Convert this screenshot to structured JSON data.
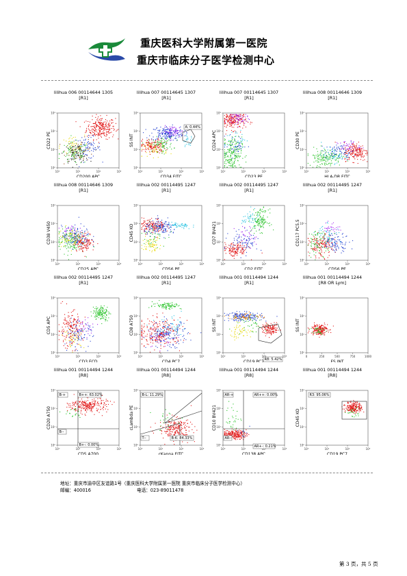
{
  "header": {
    "hospital": "重庆医科大学附属第一医院",
    "center": "重庆市临床分子医学检测中心"
  },
  "footer": {
    "address": "地址：重庆市渝中区友谊路1号（重庆医科大学附属第一医院 重庆市临床分子医学检测中心）",
    "postcode": "邮编：400016",
    "phone": "电话：023-89011478",
    "page": "第 3 页，共 5 页"
  },
  "chart_data": [
    {
      "type": "scatter",
      "title": "lilihua 006 00114644 1305",
      "gate": "[R1]",
      "xlabel": "CD200 APC",
      "ylabel": "CD22 PE",
      "x_scale": "log",
      "y_scale": "log",
      "xticks": [
        "10⁰",
        "10¹",
        "10²",
        "10³"
      ],
      "yticks": [
        "10⁰",
        "10¹",
        "10²",
        "10³"
      ],
      "populations": [
        {
          "color": "#e01010",
          "cx": 2.1,
          "cy": 2.2,
          "sx": 0.35,
          "sy": 0.3,
          "n": 260
        },
        {
          "color": "#1e3cd0",
          "cx": 1.4,
          "cy": 1.1,
          "sx": 0.35,
          "sy": 0.3,
          "n": 90
        },
        {
          "color": "#22c022",
          "cx": 0.8,
          "cy": 0.8,
          "sx": 0.35,
          "sy": 0.3,
          "n": 90
        },
        {
          "color": "#8b4513",
          "cx": 1.1,
          "cy": 1.0,
          "sx": 0.35,
          "sy": 0.3,
          "n": 60
        },
        {
          "color": "#111111",
          "cx": 0.9,
          "cy": 0.8,
          "sx": 0.3,
          "sy": 0.25,
          "n": 60
        },
        {
          "color": "#e8d800",
          "cx": 0.7,
          "cy": 1.2,
          "sx": 0.3,
          "sy": 0.3,
          "n": 40
        }
      ],
      "annotations": []
    },
    {
      "type": "scatter",
      "title": "lilihua 007 00114645 1307",
      "gate": "[R1]",
      "xlabel": "CD34 FITC",
      "ylabel": "SS INT",
      "x_scale": "log",
      "y_scale": "log",
      "xticks": [
        "10⁰",
        "10¹",
        "10²",
        "10³"
      ],
      "yticks": [
        "10⁰",
        "10¹",
        "10²",
        "10³"
      ],
      "populations": [
        {
          "color": "#1e3cd0",
          "cx": 1.3,
          "cy": 1.9,
          "sx": 0.4,
          "sy": 0.2,
          "n": 180
        },
        {
          "color": "#e01010",
          "cx": 0.6,
          "cy": 1.2,
          "sx": 0.3,
          "sy": 0.2,
          "n": 140
        },
        {
          "color": "#22c022",
          "cx": 1.0,
          "cy": 1.3,
          "sx": 0.3,
          "sy": 0.2,
          "n": 80
        },
        {
          "color": "#a020f0",
          "cx": 1.6,
          "cy": 2.0,
          "sx": 0.25,
          "sy": 0.15,
          "n": 60
        },
        {
          "color": "#e8d800",
          "cx": 0.7,
          "cy": 1.0,
          "sx": 0.3,
          "sy": 0.2,
          "n": 40
        },
        {
          "color": "#20c0e0",
          "cx": 2.3,
          "cy": 1.5,
          "sx": 0.15,
          "sy": 0.15,
          "n": 25
        }
      ],
      "annotations": [
        {
          "text": "A: 0.44%"
        }
      ]
    },
    {
      "type": "scatter",
      "title": "lilihua 007 00114645 1307",
      "gate": "[R1]",
      "xlabel": "CD23 PE",
      "ylabel": "CD24 APC",
      "x_scale": "log",
      "y_scale": "log",
      "xticks": [
        "10⁰",
        "10¹",
        "10²",
        "10³"
      ],
      "yticks": [
        "10⁰",
        "10¹",
        "10²",
        "10³"
      ],
      "populations": [
        {
          "color": "#e01010",
          "cx": 0.5,
          "cy": 2.6,
          "sx": 0.3,
          "sy": 0.25,
          "n": 200
        },
        {
          "color": "#a020f0",
          "cx": 0.7,
          "cy": 2.7,
          "sx": 0.25,
          "sy": 0.2,
          "n": 60
        },
        {
          "color": "#22c022",
          "cx": 0.4,
          "cy": 0.8,
          "sx": 0.25,
          "sy": 0.45,
          "n": 200
        },
        {
          "color": "#1e3cd0",
          "cx": 0.6,
          "cy": 1.2,
          "sx": 0.3,
          "sy": 0.3,
          "n": 40
        },
        {
          "color": "#20c0e0",
          "cx": 0.6,
          "cy": 1.6,
          "sx": 0.25,
          "sy": 0.25,
          "n": 25
        }
      ],
      "annotations": []
    },
    {
      "type": "scatter",
      "title": "lilihua 008 00114646 1309",
      "gate": "[R1]",
      "xlabel": "HLA-DR FITC",
      "ylabel": "CD30 PE",
      "x_scale": "log",
      "y_scale": "log",
      "xticks": [
        "10⁰",
        "10¹",
        "10²",
        "10³"
      ],
      "yticks": [
        "10⁰",
        "10¹",
        "10²",
        "10³"
      ],
      "populations": [
        {
          "color": "#e01010",
          "cx": 2.4,
          "cy": 0.9,
          "sx": 0.3,
          "sy": 0.25,
          "n": 180
        },
        {
          "color": "#22c022",
          "cx": 0.9,
          "cy": 0.6,
          "sx": 0.4,
          "sy": 0.25,
          "n": 150
        },
        {
          "color": "#1e3cd0",
          "cx": 1.6,
          "cy": 0.9,
          "sx": 0.35,
          "sy": 0.2,
          "n": 70
        },
        {
          "color": "#a020f0",
          "cx": 2.0,
          "cy": 1.2,
          "sx": 0.3,
          "sy": 0.15,
          "n": 40
        },
        {
          "color": "#20c0e0",
          "cx": 1.3,
          "cy": 0.7,
          "sx": 0.3,
          "sy": 0.2,
          "n": 40
        }
      ],
      "annotations": []
    },
    {
      "type": "scatter",
      "title": "lilihua 008 00114646 1309",
      "gate": "[R1]",
      "xlabel": "CD25 APC",
      "ylabel": "CD38 V450",
      "x_scale": "log",
      "y_scale": "log",
      "xticks": [
        "10⁰",
        "10¹",
        "10²",
        "10³"
      ],
      "yticks": [
        "10⁰",
        "10¹",
        "10²",
        "10³"
      ],
      "populations": [
        {
          "color": "#22c022",
          "cx": 0.6,
          "cy": 1.1,
          "sx": 0.35,
          "sy": 0.35,
          "n": 150
        },
        {
          "color": "#1e3cd0",
          "cx": 0.9,
          "cy": 1.3,
          "sx": 0.35,
          "sy": 0.3,
          "n": 120
        },
        {
          "color": "#e01010",
          "cx": 1.3,
          "cy": 1.0,
          "sx": 0.25,
          "sy": 0.25,
          "n": 120
        },
        {
          "color": "#e8d800",
          "cx": 0.5,
          "cy": 1.3,
          "sx": 0.25,
          "sy": 0.25,
          "n": 50
        },
        {
          "color": "#a020f0",
          "cx": 0.6,
          "cy": 1.6,
          "sx": 0.2,
          "sy": 0.2,
          "n": 30
        }
      ],
      "annotations": []
    },
    {
      "type": "scatter",
      "title": "lilihua 002 00114495 1247",
      "gate": "[R1]",
      "xlabel": "CD56 PE",
      "ylabel": "CD45 KO",
      "x_scale": "log",
      "y_scale": "log",
      "xticks": [
        "10⁰",
        "10¹",
        "10²",
        "10³"
      ],
      "yticks": [
        "10⁰",
        "10¹",
        "10²",
        "10³"
      ],
      "populations": [
        {
          "color": "#e01010",
          "cx": 0.6,
          "cy": 1.9,
          "sx": 0.3,
          "sy": 0.2,
          "n": 150
        },
        {
          "color": "#1e3cd0",
          "cx": 1.0,
          "cy": 1.8,
          "sx": 0.4,
          "sy": 0.2,
          "n": 140
        },
        {
          "color": "#20c0e0",
          "cx": 1.9,
          "cy": 1.9,
          "sx": 0.3,
          "sy": 0.1,
          "n": 50
        },
        {
          "color": "#e8d800",
          "cx": 0.5,
          "cy": 0.9,
          "sx": 0.25,
          "sy": 0.2,
          "n": 60
        },
        {
          "color": "#22c022",
          "cx": 0.6,
          "cy": 1.4,
          "sx": 0.3,
          "sy": 0.3,
          "n": 40
        }
      ],
      "annotations": []
    },
    {
      "type": "scatter",
      "title": "lilihua 002 00114495 1247",
      "gate": "[R1]",
      "xlabel": "CD2 FITC",
      "ylabel": "CD7 BV421",
      "x_scale": "log",
      "y_scale": "log",
      "xticks": [
        "10⁰",
        "10¹",
        "10²",
        "10³"
      ],
      "yticks": [
        "10⁰",
        "10¹",
        "10²",
        "10³"
      ],
      "populations": [
        {
          "color": "#22c022",
          "cx": 1.8,
          "cy": 2.2,
          "sx": 0.2,
          "sy": 0.3,
          "n": 130
        },
        {
          "color": "#e01010",
          "cx": 0.6,
          "cy": 0.6,
          "sx": 0.3,
          "sy": 0.2,
          "n": 140
        },
        {
          "color": "#1e3cd0",
          "cx": 1.0,
          "cy": 1.0,
          "sx": 0.35,
          "sy": 0.3,
          "n": 80
        },
        {
          "color": "#20c0e0",
          "cx": 1.3,
          "cy": 2.3,
          "sx": 0.2,
          "sy": 0.25,
          "n": 40
        },
        {
          "color": "#a020f0",
          "cx": 1.2,
          "cy": 1.4,
          "sx": 0.3,
          "sy": 0.3,
          "n": 30
        }
      ],
      "annotations": []
    },
    {
      "type": "scatter",
      "title": "lilihua 002 00114495 1247",
      "gate": "[R1]",
      "xlabel": "CD56 PE",
      "ylabel": "CD117 PC5.5",
      "x_scale": "log",
      "y_scale": "log",
      "xticks": [
        "10⁰",
        "10¹",
        "10²",
        "10³"
      ],
      "yticks": [
        "10⁰",
        "10¹",
        "10²",
        "10³"
      ],
      "populations": [
        {
          "color": "#e01010",
          "cx": 0.7,
          "cy": 0.8,
          "sx": 0.3,
          "sy": 0.3,
          "n": 150
        },
        {
          "color": "#1e3cd0",
          "cx": 1.4,
          "cy": 1.0,
          "sx": 0.35,
          "sy": 0.25,
          "n": 100
        },
        {
          "color": "#22c022",
          "cx": 0.6,
          "cy": 1.0,
          "sx": 0.3,
          "sy": 0.35,
          "n": 80
        },
        {
          "color": "#20c0e0",
          "cx": 1.0,
          "cy": 1.5,
          "sx": 0.3,
          "sy": 0.3,
          "n": 40
        },
        {
          "color": "#a020f0",
          "cx": 1.2,
          "cy": 1.8,
          "sx": 0.2,
          "sy": 0.15,
          "n": 30
        }
      ],
      "annotations": []
    },
    {
      "type": "scatter",
      "title": "lilihua 002 00114495 1247",
      "gate": "[R1]",
      "xlabel": "CD3 ECD",
      "ylabel": "CD5 APC",
      "x_scale": "log",
      "y_scale": "log",
      "xticks": [
        "10⁰",
        "10¹",
        "10²",
        "10³"
      ],
      "yticks": [
        "10⁰",
        "10¹",
        "10²",
        "10³"
      ],
      "populations": [
        {
          "color": "#22c022",
          "cx": 2.1,
          "cy": 2.2,
          "sx": 0.2,
          "sy": 0.2,
          "n": 130
        },
        {
          "color": "#e01010",
          "cx": 0.6,
          "cy": 1.3,
          "sx": 0.3,
          "sy": 0.5,
          "n": 170
        },
        {
          "color": "#1e3cd0",
          "cx": 1.0,
          "cy": 1.0,
          "sx": 0.35,
          "sy": 0.35,
          "n": 90
        },
        {
          "color": "#e8d800",
          "cx": 0.8,
          "cy": 0.8,
          "sx": 0.25,
          "sy": 0.25,
          "n": 40
        },
        {
          "color": "#a020f0",
          "cx": 1.3,
          "cy": 1.5,
          "sx": 0.3,
          "sy": 0.25,
          "n": 30
        }
      ],
      "annotations": []
    },
    {
      "type": "scatter",
      "title": "lilihua 002 00114495 1247",
      "gate": "[R1]",
      "xlabel": "CD4 PC7",
      "ylabel": "CD8 A750",
      "x_scale": "log",
      "y_scale": "log",
      "xticks": [
        "10⁰",
        "10¹",
        "10²",
        "10³"
      ],
      "yticks": [
        "10⁰",
        "10¹",
        "10²",
        "10³"
      ],
      "populations": [
        {
          "color": "#22c022",
          "cx": 1.3,
          "cy": 2.6,
          "sx": 0.35,
          "sy": 0.1,
          "n": 90
        },
        {
          "color": "#e01010",
          "cx": 0.9,
          "cy": 1.1,
          "sx": 0.55,
          "sy": 0.4,
          "n": 230
        },
        {
          "color": "#1e3cd0",
          "cx": 1.3,
          "cy": 1.0,
          "sx": 0.5,
          "sy": 0.35,
          "n": 150
        },
        {
          "color": "#20c0e0",
          "cx": 1.5,
          "cy": 1.3,
          "sx": 0.4,
          "sy": 0.3,
          "n": 50
        },
        {
          "color": "#a020f0",
          "cx": 1.0,
          "cy": 0.8,
          "sx": 0.4,
          "sy": 0.3,
          "n": 30
        }
      ],
      "annotations": []
    },
    {
      "type": "scatter",
      "title": "lilihua 001 00114494 1244",
      "gate": "[R1]",
      "xlabel": "CD19 PC7",
      "ylabel": "SS INT",
      "x_scale": "log",
      "y_scale": "log",
      "xticks": [
        "10⁰",
        "10¹",
        "10²",
        "10³"
      ],
      "yticks": [
        "10⁰",
        "10¹",
        "10²",
        "10³"
      ],
      "populations": [
        {
          "color": "#1e3cd0",
          "cx": 1.0,
          "cy": 2.0,
          "sx": 0.45,
          "sy": 0.12,
          "n": 170
        },
        {
          "color": "#ff8c00",
          "cx": 1.1,
          "cy": 2.0,
          "sx": 0.4,
          "sy": 0.1,
          "n": 60
        },
        {
          "color": "#e01010",
          "cx": 2.3,
          "cy": 1.3,
          "sx": 0.2,
          "sy": 0.15,
          "n": 130
        },
        {
          "color": "#e8d800",
          "cx": 0.8,
          "cy": 1.2,
          "sx": 0.3,
          "sy": 0.2,
          "n": 50
        },
        {
          "color": "#22c022",
          "cx": 1.4,
          "cy": 1.6,
          "sx": 0.35,
          "sy": 0.3,
          "n": 40
        }
      ],
      "annotations": [
        {
          "text": "R8: 5.42%"
        }
      ]
    },
    {
      "type": "scatter",
      "title": "lilihua 001 00114494 1244",
      "gate": "[R8 OR Lym]",
      "xlabel": "FS INT",
      "ylabel": "SS INT",
      "x_scale": "linear",
      "y_scale": "log",
      "xticks": [
        "0",
        "250",
        "500",
        "750",
        "1000"
      ],
      "yticks": [
        "10⁰",
        "10¹",
        "10²",
        "10³"
      ],
      "populations": [
        {
          "color": "#e01010",
          "cx": 0.2,
          "cy": 1.3,
          "sx": 0.07,
          "sy": 0.15,
          "n": 180
        },
        {
          "color": "#22c022",
          "cx": 0.16,
          "cy": 1.2,
          "sx": 0.06,
          "sy": 0.15,
          "n": 30
        }
      ],
      "annotations": []
    },
    {
      "type": "scatter",
      "title": "lilihua 001 00114494 1244",
      "gate": "[R8]",
      "xlabel": "CD5 A700",
      "ylabel": "CD20 A750",
      "x_scale": "log",
      "y_scale": "log",
      "xticks": [
        "10⁰",
        "10¹",
        "10²",
        "10³"
      ],
      "yticks": [
        "10⁰",
        "10¹",
        "10²",
        "10³"
      ],
      "populations": [
        {
          "color": "#e01010",
          "cx": 1.5,
          "cy": 2.2,
          "sx": 0.45,
          "sy": 0.2,
          "n": 260
        },
        {
          "color": "#22c022",
          "cx": 0.7,
          "cy": 1.8,
          "sx": 0.25,
          "sy": 0.2,
          "n": 20
        }
      ],
      "annotations": [
        {
          "text": "B-+"
        },
        {
          "text": "B++: 63.02%"
        },
        {
          "text": "B--"
        },
        {
          "text": "B+-: 0.00%"
        }
      ]
    },
    {
      "type": "scatter",
      "title": "lilihua 001 00114494 1244",
      "gate": "[R8]",
      "xlabel": "cKappa FITC",
      "ylabel": "cLambda PE",
      "x_scale": "log",
      "y_scale": "log",
      "xticks": [
        "10⁰",
        "10¹",
        "10²",
        "10³"
      ],
      "yticks": [
        "10⁰",
        "10¹",
        "10²",
        "10³"
      ],
      "populations": [
        {
          "color": "#e01010",
          "cx": 1.7,
          "cy": 0.9,
          "sx": 0.4,
          "sy": 0.3,
          "n": 220
        },
        {
          "color": "#22c022",
          "cx": 1.2,
          "cy": 1.4,
          "sx": 0.3,
          "sy": 0.3,
          "n": 20
        }
      ],
      "annotations": [
        {
          "text": "B-L: 11.29%"
        },
        {
          "text": "T--"
        },
        {
          "text": "B-K: 84.33%"
        }
      ]
    },
    {
      "type": "scatter",
      "title": "lilihua 001 00114494 1244",
      "gate": "[R8]",
      "xlabel": "CD138 APC",
      "ylabel": "CD10 BV421",
      "x_scale": "log",
      "y_scale": "log",
      "xticks": [
        "10⁰",
        "10¹",
        "10²",
        "10³"
      ],
      "yticks": [
        "10⁰",
        "10¹",
        "10²",
        "10³"
      ],
      "populations": [
        {
          "color": "#e01010",
          "cx": 0.5,
          "cy": 0.6,
          "sx": 0.3,
          "sy": 0.12,
          "n": 220
        },
        {
          "color": "#22c022",
          "cx": 0.5,
          "cy": 1.5,
          "sx": 0.2,
          "sy": 0.4,
          "n": 30
        },
        {
          "color": "#1e3cd0",
          "cx": 0.9,
          "cy": 0.7,
          "sx": 0.2,
          "sy": 0.15,
          "n": 10
        }
      ],
      "annotations": [
        {
          "text": "AR-+"
        },
        {
          "text": "AR++: 0.00%"
        },
        {
          "text": "AR--"
        },
        {
          "text": "AR+-: 0.21%"
        }
      ]
    },
    {
      "type": "scatter",
      "title": "lilihua 001 00114494 1244",
      "gate": "[R8]",
      "xlabel": "CD19 PC7",
      "ylabel": "CD45 KO",
      "x_scale": "log",
      "y_scale": "log",
      "xticks": [
        "10⁰",
        "10¹",
        "10²",
        "10³"
      ],
      "yticks": [
        "10⁰",
        "10¹",
        "10²",
        "10³"
      ],
      "populations": [
        {
          "color": "#e01010",
          "cx": 2.3,
          "cy": 2.1,
          "sx": 0.2,
          "sy": 0.15,
          "n": 200
        },
        {
          "color": "#22c022",
          "cx": 2.2,
          "cy": 1.8,
          "sx": 0.2,
          "sy": 0.15,
          "n": 25
        }
      ],
      "annotations": [
        {
          "text": "R3: 95.06%"
        }
      ]
    }
  ]
}
